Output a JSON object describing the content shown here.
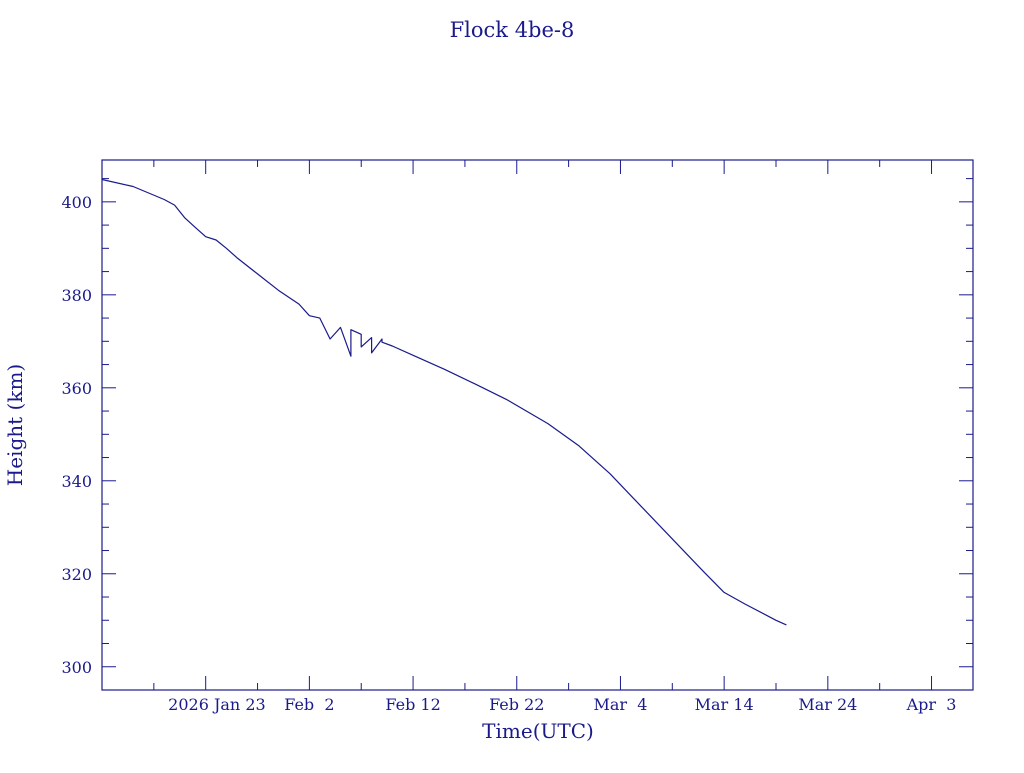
{
  "colors": {
    "ink": "#1a1a8c",
    "background": "#ffffff"
  },
  "chart_data": {
    "type": "line",
    "title": "Flock 4be-8",
    "xlabel": "Time(UTC)",
    "ylabel": "Height (km)",
    "x_tick_labels": [
      "2026 Jan 23",
      "Feb  2",
      "Feb 12",
      "Feb 22",
      "Mar  4",
      "Mar 14",
      "Mar 24",
      "Apr  3"
    ],
    "y_tick_labels": [
      "300",
      "320",
      "340",
      "360",
      "380",
      "400"
    ],
    "ylim": [
      295,
      409
    ],
    "xlim": [
      "2026-01-13",
      "2026-04-07"
    ],
    "grid": false,
    "series": [
      {
        "x": [
          "2026-01-13",
          "2026-01-16",
          "2026-01-19",
          "2026-01-20",
          "2026-01-21",
          "2026-01-22",
          "2026-01-23",
          "2026-01-24",
          "2026-01-25",
          "2026-01-26",
          "2026-01-28",
          "2026-01-30",
          "2026-02-01",
          "2026-02-02",
          "2026-02-03",
          "2026-02-04",
          "2026-02-05",
          "2026-02-06",
          "2026-02-06",
          "2026-02-07",
          "2026-02-07",
          "2026-02-08",
          "2026-02-08",
          "2026-02-09",
          "2026-02-09",
          "2026-02-10",
          "2026-02-12",
          "2026-02-15",
          "2026-02-18",
          "2026-02-21",
          "2026-02-25",
          "2026-02-28",
          "2026-03-03",
          "2026-03-06",
          "2026-03-09",
          "2026-03-12",
          "2026-03-14",
          "2026-03-16",
          "2026-03-19",
          "2026-03-20"
        ],
        "y": [
          404.8,
          403.3,
          400.5,
          399.3,
          396.5,
          394.5,
          392.5,
          391.8,
          390.0,
          388.0,
          384.5,
          381.0,
          378.0,
          375.5,
          375.0,
          370.5,
          373.0,
          366.8,
          372.5,
          371.5,
          368.8,
          370.8,
          367.5,
          370.5,
          369.8,
          369.0,
          367.0,
          364.0,
          360.8,
          357.5,
          352.3,
          347.5,
          341.5,
          334.5,
          327.5,
          320.5,
          316.0,
          313.5,
          310.0,
          309.0
        ]
      }
    ]
  }
}
